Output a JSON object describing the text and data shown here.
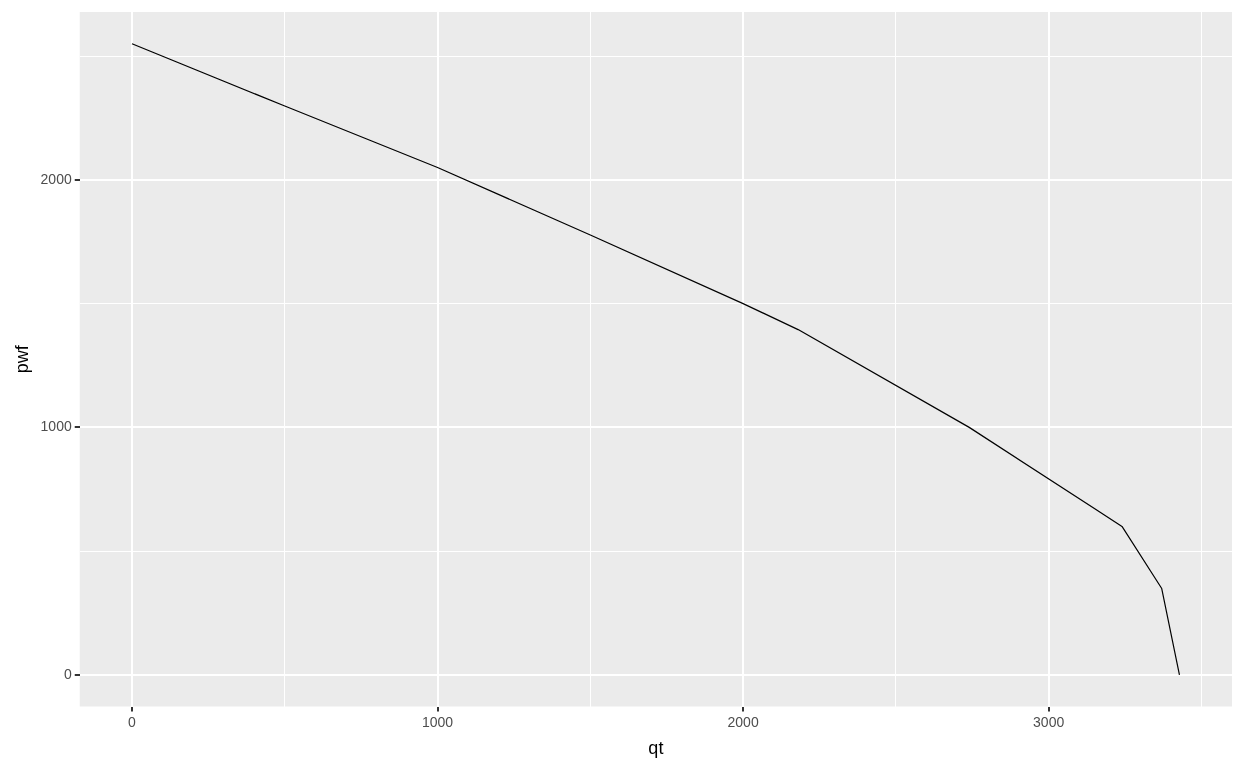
{
  "chart_data": {
    "type": "line",
    "xlabel": "qt",
    "ylabel": "pwf",
    "x": [
      0,
      500,
      1000,
      1500,
      2000,
      2180,
      2740,
      3240,
      3370,
      3428
    ],
    "series": [
      {
        "color": "#000000",
        "values": [
          2550,
          2298,
          2050,
          1777,
          1500,
          1395,
          1000,
          600,
          349,
          0
        ]
      }
    ],
    "xlim": [
      -171,
      3600
    ],
    "ylim": [
      -128,
      2678
    ],
    "xticks": [
      0,
      {
        "value": 500,
        "label": null
      },
      1000,
      {
        "value": 1500,
        "label": null
      },
      2000,
      {
        "value": 2500,
        "label": null
      },
      3000,
      {
        "value": 3500,
        "label": null
      }
    ],
    "yticks": [
      0,
      {
        "value": 500,
        "label": null
      },
      1000,
      {
        "value": 1500,
        "label": null
      },
      2000,
      {
        "value": 2500,
        "label": null
      }
    ],
    "grid": true,
    "legend": false,
    "marker": "none",
    "line_style": "solid"
  }
}
